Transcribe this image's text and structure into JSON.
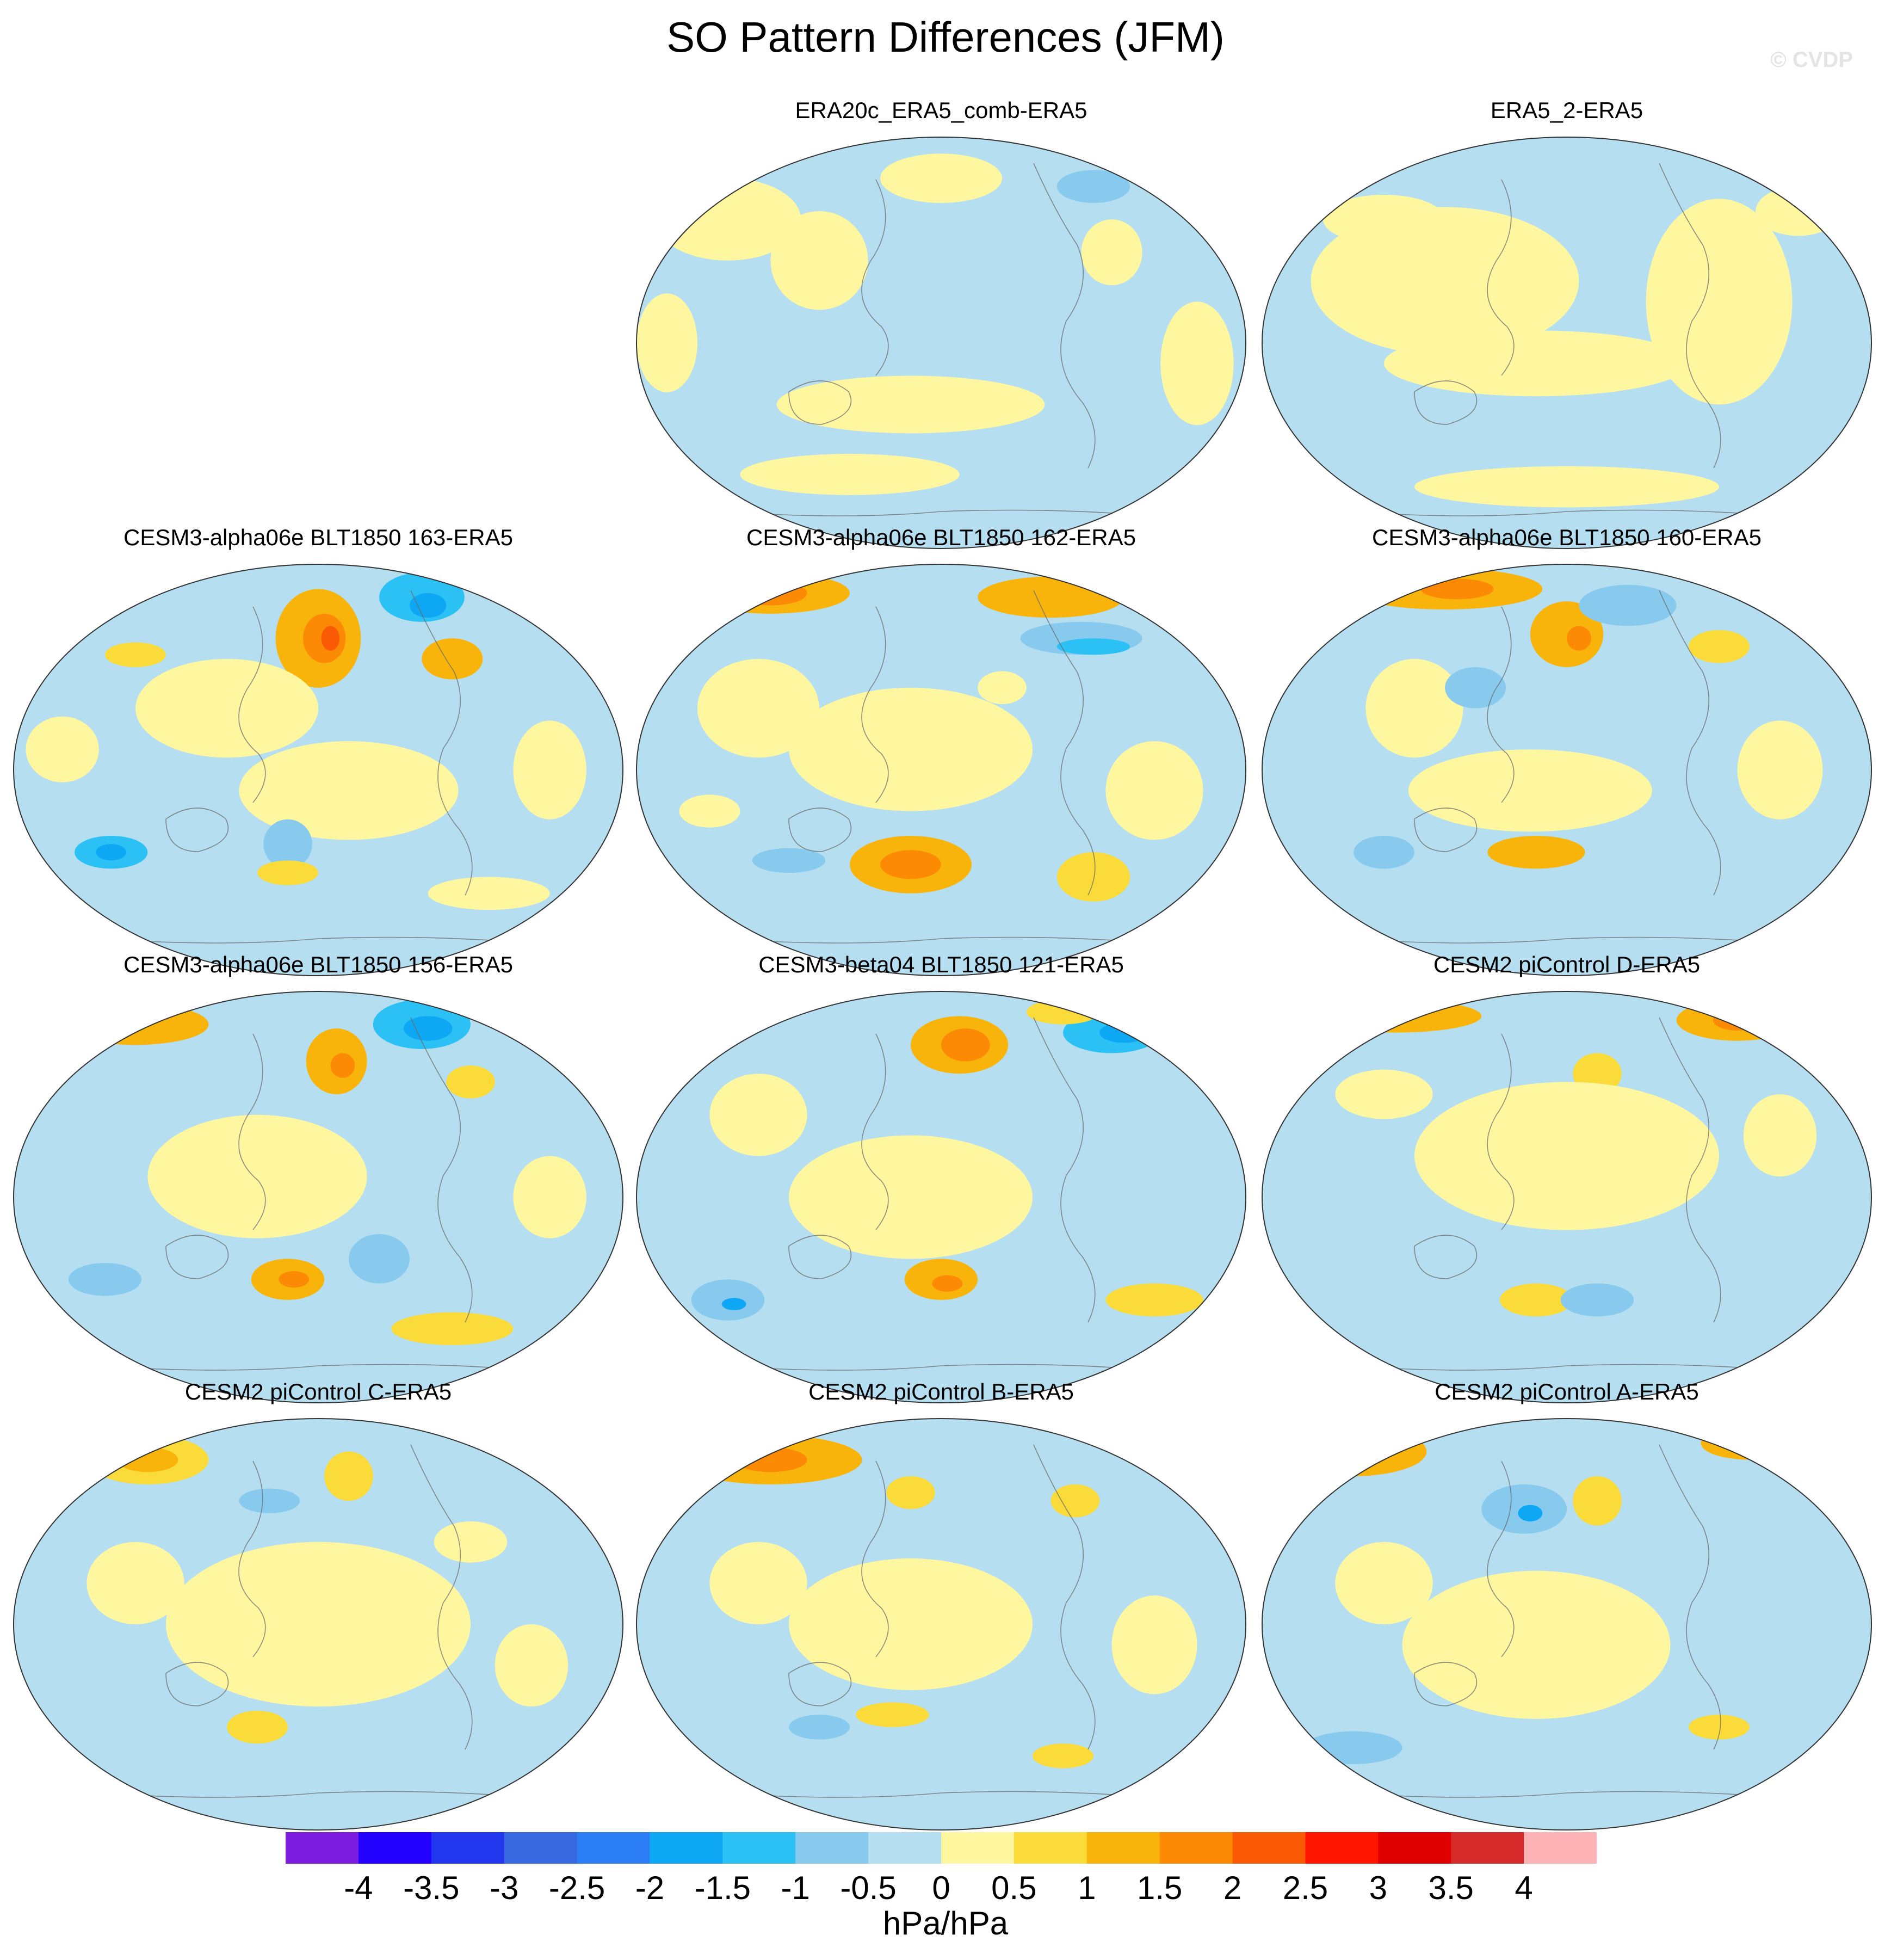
{
  "figure": {
    "title": "SO Pattern Differences (JFM)",
    "watermark": "© CVDP"
  },
  "panels": [
    {
      "title": "ERA20c_ERA5_comb-ERA5",
      "max_level": 1
    },
    {
      "title": "ERA5_2-ERA5",
      "max_level": 1
    },
    {
      "title": "CESM3-alpha06e BLT1850 163-ERA5",
      "max_level": 4
    },
    {
      "title": "CESM3-alpha06e BLT1850 162-ERA5",
      "max_level": 3
    },
    {
      "title": "CESM3-alpha06e BLT1850 160-ERA5",
      "max_level": 3
    },
    {
      "title": "CESM3-alpha06e BLT1850 156-ERA5",
      "max_level": 3
    },
    {
      "title": "CESM3-beta04 BLT1850 121-ERA5",
      "max_level": 3
    },
    {
      "title": "CESM2 piControl D-ERA5",
      "max_level": 3
    },
    {
      "title": "CESM2 piControl C-ERA5",
      "max_level": 2
    },
    {
      "title": "CESM2 piControl B-ERA5",
      "max_level": 3
    },
    {
      "title": "CESM2 piControl A-ERA5",
      "max_level": 3
    }
  ],
  "colorbar": {
    "units": "hPa/hPa",
    "ticks": [
      "-4",
      "-3.5",
      "-3",
      "-2.5",
      "-2",
      "-1.5",
      "-1",
      "-0.5",
      "0",
      "0.5",
      "1",
      "1.5",
      "2",
      "2.5",
      "3",
      "3.5",
      "4"
    ],
    "colors": [
      "#7d1de0",
      "#2400ff",
      "#2236ee",
      "#3768e0",
      "#2c7ef6",
      "#0da7f4",
      "#2cc1f5",
      "#87caee",
      "#b5dff1",
      "#fff7a0",
      "#fadb3a",
      "#f9b40c",
      "#fc8a05",
      "#fb5a05",
      "#ff1400",
      "#e00000",
      "#d72a2a",
      "#fdb3b6"
    ]
  }
}
